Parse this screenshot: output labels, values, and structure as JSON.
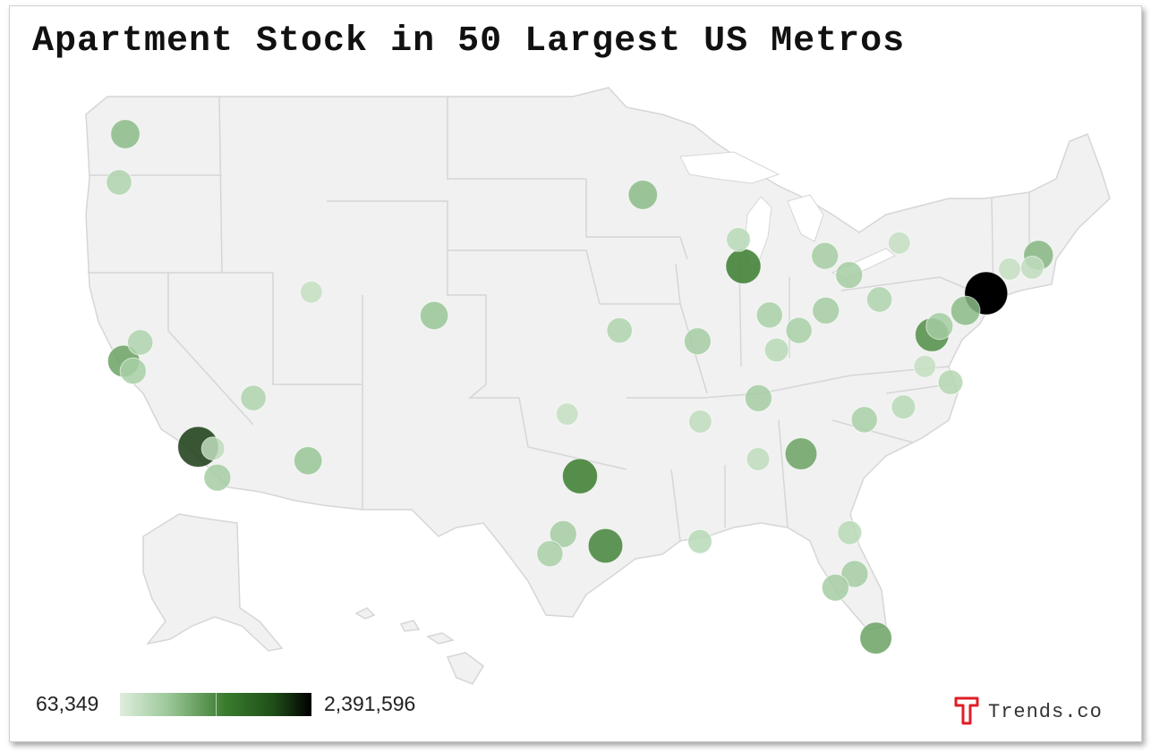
{
  "title": "Apartment Stock in 50 Largest US Metros",
  "legend": {
    "min_label": "63,349",
    "max_label": "2,391,596",
    "min_color": "#dfeedd",
    "max_color": "#000000"
  },
  "branding": {
    "text": "Trends.co",
    "icon": "trends-t-logo",
    "icon_color": "#e01e26"
  },
  "colors": {
    "land": "#f1f1f1",
    "border": "#d6d6d6"
  },
  "metros": [
    {
      "name": "Seattle",
      "lon": -122.33,
      "lat": 47.61,
      "level": 0.3
    },
    {
      "name": "Portland",
      "lon": -122.68,
      "lat": 45.52,
      "level": 0.18
    },
    {
      "name": "Minneapolis",
      "lon": -93.27,
      "lat": 44.98,
      "level": 0.3
    },
    {
      "name": "Milwaukee",
      "lon": -87.91,
      "lat": 43.04,
      "level": 0.14
    },
    {
      "name": "Chicago",
      "lon": -87.63,
      "lat": 41.88,
      "level": 0.55
    },
    {
      "name": "Detroit",
      "lon": -83.05,
      "lat": 42.33,
      "level": 0.22
    },
    {
      "name": "Cleveland",
      "lon": -81.69,
      "lat": 41.5,
      "level": 0.22
    },
    {
      "name": "Buffalo",
      "lon": -78.88,
      "lat": 42.89,
      "level": 0.1
    },
    {
      "name": "Boston",
      "lon": -71.06,
      "lat": 42.36,
      "level": 0.32
    },
    {
      "name": "Providence",
      "lon": -71.41,
      "lat": 41.82,
      "level": 0.12
    },
    {
      "name": "Hartford",
      "lon": -72.68,
      "lat": 41.76,
      "level": 0.1
    },
    {
      "name": "New York",
      "lon": -74.0,
      "lat": 40.71,
      "level": 1.0
    },
    {
      "name": "Philadelphia",
      "lon": -75.16,
      "lat": 39.95,
      "level": 0.3
    },
    {
      "name": "Pittsburgh",
      "lon": -79.99,
      "lat": 40.44,
      "level": 0.18
    },
    {
      "name": "Baltimore",
      "lon": -76.61,
      "lat": 39.29,
      "level": 0.22
    },
    {
      "name": "Washington",
      "lon": -77.04,
      "lat": 38.91,
      "level": 0.48
    },
    {
      "name": "Richmond",
      "lon": -77.44,
      "lat": 37.54,
      "level": 0.1
    },
    {
      "name": "Virginia Beach",
      "lon": -76.0,
      "lat": 36.85,
      "level": 0.16
    },
    {
      "name": "Columbus",
      "lon": -83.0,
      "lat": 39.96,
      "level": 0.22
    },
    {
      "name": "Cincinnati",
      "lon": -84.51,
      "lat": 39.1,
      "level": 0.2
    },
    {
      "name": "Indianapolis",
      "lon": -86.16,
      "lat": 39.77,
      "level": 0.2
    },
    {
      "name": "Louisville",
      "lon": -85.76,
      "lat": 38.25,
      "level": 0.14
    },
    {
      "name": "St. Louis",
      "lon": -90.2,
      "lat": 38.63,
      "level": 0.22
    },
    {
      "name": "Kansas City",
      "lon": -94.58,
      "lat": 39.1,
      "level": 0.18
    },
    {
      "name": "Nashville",
      "lon": -86.78,
      "lat": 36.16,
      "level": 0.22
    },
    {
      "name": "Memphis",
      "lon": -90.05,
      "lat": 35.15,
      "level": 0.12
    },
    {
      "name": "Raleigh",
      "lon": -78.64,
      "lat": 35.78,
      "level": 0.14
    },
    {
      "name": "Charlotte",
      "lon": -80.84,
      "lat": 35.23,
      "level": 0.2
    },
    {
      "name": "Atlanta",
      "lon": -84.39,
      "lat": 33.75,
      "level": 0.4
    },
    {
      "name": "Birmingham",
      "lon": -86.8,
      "lat": 33.52,
      "level": 0.12
    },
    {
      "name": "Jacksonville",
      "lon": -81.66,
      "lat": 30.33,
      "level": 0.14
    },
    {
      "name": "Orlando",
      "lon": -81.38,
      "lat": 28.54,
      "level": 0.22
    },
    {
      "name": "Tampa",
      "lon": -82.46,
      "lat": 27.95,
      "level": 0.22
    },
    {
      "name": "Miami",
      "lon": -80.19,
      "lat": 25.76,
      "level": 0.4
    },
    {
      "name": "New Orleans",
      "lon": -90.07,
      "lat": 29.95,
      "level": 0.14
    },
    {
      "name": "Houston",
      "lon": -95.37,
      "lat": 29.76,
      "level": 0.52
    },
    {
      "name": "Dallas",
      "lon": -96.8,
      "lat": 32.78,
      "level": 0.55
    },
    {
      "name": "Austin",
      "lon": -97.74,
      "lat": 30.27,
      "level": 0.22
    },
    {
      "name": "San Antonio",
      "lon": -98.49,
      "lat": 29.42,
      "level": 0.2
    },
    {
      "name": "Oklahoma City",
      "lon": -97.52,
      "lat": 35.47,
      "level": 0.1
    },
    {
      "name": "Denver",
      "lon": -104.99,
      "lat": 39.74,
      "level": 0.26
    },
    {
      "name": "Salt Lake City",
      "lon": -111.89,
      "lat": 40.76,
      "level": 0.1
    },
    {
      "name": "Phoenix",
      "lon": -112.07,
      "lat": 33.45,
      "level": 0.26
    },
    {
      "name": "Las Vegas",
      "lon": -115.14,
      "lat": 36.17,
      "level": 0.18
    },
    {
      "name": "Los Angeles",
      "lon": -118.24,
      "lat": 34.05,
      "level": 0.85
    },
    {
      "name": "Riverside",
      "lon": -117.4,
      "lat": 33.98,
      "level": 0.12
    },
    {
      "name": "San Diego",
      "lon": -117.16,
      "lat": 32.72,
      "level": 0.22
    },
    {
      "name": "San Francisco",
      "lon": -122.42,
      "lat": 37.77,
      "level": 0.4
    },
    {
      "name": "San Jose",
      "lon": -121.89,
      "lat": 37.34,
      "level": 0.2
    },
    {
      "name": "Sacramento",
      "lon": -121.49,
      "lat": 38.58,
      "level": 0.18
    }
  ]
}
